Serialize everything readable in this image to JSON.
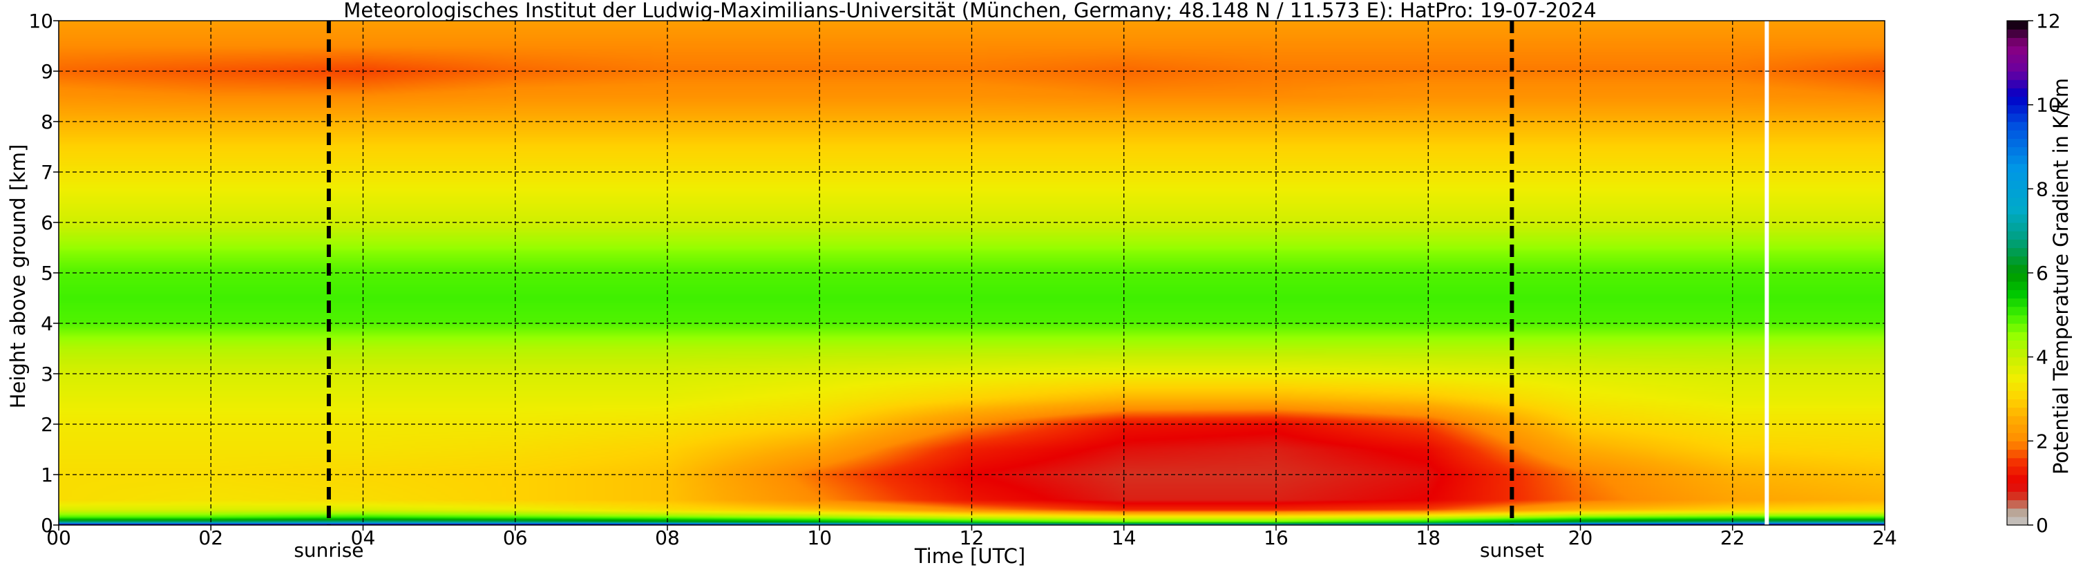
{
  "chart_data": {
    "type": "heatmap",
    "title": "Meteorologisches Institut der Ludwig-Maximilians-Universität (München, Germany; 48.148 N / 11.573 E):    HatPro: 19-07-2024",
    "xlabel": "Time [UTC]",
    "ylabel": "Height above ground [km]",
    "xlim": [
      0,
      24
    ],
    "ylim": [
      0,
      10
    ],
    "x_ticks": [
      "00",
      "02",
      "04",
      "06",
      "08",
      "10",
      "12",
      "14",
      "16",
      "18",
      "20",
      "22",
      "24"
    ],
    "y_ticks": [
      "0",
      "1",
      "2",
      "3",
      "4",
      "5",
      "6",
      "7",
      "8",
      "9",
      "10"
    ],
    "grid": true,
    "colorbar": {
      "label": "Potential Temperature Gradient in K/km",
      "range": [
        0,
        12
      ],
      "ticks": [
        "0",
        "2",
        "4",
        "6",
        "8",
        "10",
        "12"
      ]
    },
    "events": [
      {
        "label": "sunrise",
        "time": 3.55
      },
      {
        "label": "sunset",
        "time": 19.1
      }
    ],
    "data_gap_time": 22.45,
    "profile_levels": [
      0.0,
      0.05,
      0.15,
      0.3,
      0.5,
      1.0,
      1.5,
      2.0,
      2.5,
      3.0,
      3.5,
      4.0,
      4.5,
      5.0,
      5.4,
      6.0,
      6.5,
      7.0,
      7.5,
      8.0,
      8.5,
      9.0,
      9.5,
      10.0
    ],
    "times": [
      0,
      2,
      4,
      6,
      8,
      10,
      12,
      14,
      16,
      18,
      20,
      22,
      24
    ],
    "gradient_profiles": [
      [
        11.5,
        7.0,
        5.0,
        3.8,
        3.2,
        3.2,
        3.3,
        3.4,
        3.6,
        3.8,
        4.2,
        4.9,
        5.0,
        4.9,
        4.6,
        3.9,
        3.6,
        3.3,
        3.0,
        2.6,
        2.1,
        1.8,
        2.0,
        2.3
      ],
      [
        11.5,
        7.0,
        5.0,
        3.8,
        3.3,
        3.2,
        3.3,
        3.4,
        3.6,
        3.8,
        4.2,
        4.9,
        5.0,
        4.9,
        4.6,
        3.9,
        3.6,
        3.3,
        3.0,
        2.6,
        2.0,
        1.7,
        2.0,
        2.3
      ],
      [
        11.5,
        7.2,
        5.2,
        3.8,
        3.2,
        3.1,
        3.3,
        3.4,
        3.6,
        3.8,
        4.2,
        4.9,
        5.0,
        4.9,
        4.6,
        3.9,
        3.6,
        3.3,
        3.0,
        2.6,
        2.0,
        1.6,
        2.0,
        2.3
      ],
      [
        11.5,
        7.0,
        5.0,
        3.6,
        3.0,
        3.0,
        3.2,
        3.4,
        3.6,
        3.8,
        4.2,
        4.9,
        5.0,
        4.9,
        4.6,
        3.9,
        3.6,
        3.3,
        3.0,
        2.6,
        2.1,
        1.8,
        2.0,
        2.3
      ],
      [
        11.0,
        6.5,
        4.8,
        3.2,
        2.8,
        2.8,
        3.0,
        3.3,
        3.6,
        3.8,
        4.2,
        4.9,
        5.0,
        4.9,
        4.6,
        3.9,
        3.6,
        3.3,
        3.0,
        2.6,
        2.1,
        1.9,
        2.0,
        2.3
      ],
      [
        10.0,
        6.0,
        4.5,
        2.8,
        2.0,
        1.8,
        2.4,
        3.0,
        3.4,
        3.7,
        4.2,
        4.9,
        5.0,
        4.9,
        4.6,
        3.9,
        3.6,
        3.3,
        3.0,
        2.6,
        2.1,
        1.9,
        2.0,
        2.3
      ],
      [
        9.0,
        5.5,
        4.0,
        2.0,
        1.2,
        1.0,
        1.3,
        2.0,
        3.0,
        3.6,
        4.2,
        4.9,
        5.0,
        4.9,
        4.6,
        3.9,
        3.6,
        3.3,
        3.0,
        2.6,
        2.1,
        1.9,
        2.0,
        2.3
      ],
      [
        8.5,
        5.0,
        3.6,
        1.4,
        0.8,
        0.7,
        0.9,
        1.2,
        2.6,
        3.5,
        4.2,
        4.9,
        5.0,
        4.9,
        4.6,
        3.9,
        3.6,
        3.3,
        3.0,
        2.6,
        2.0,
        1.8,
        2.0,
        2.3
      ],
      [
        8.5,
        5.0,
        3.6,
        1.4,
        0.8,
        0.7,
        0.8,
        1.1,
        2.6,
        3.5,
        4.2,
        4.9,
        5.0,
        4.9,
        4.6,
        3.9,
        3.6,
        3.3,
        3.0,
        2.6,
        2.0,
        1.9,
        2.0,
        2.3
      ],
      [
        9.5,
        5.5,
        4.0,
        1.6,
        1.0,
        0.9,
        1.1,
        1.6,
        2.8,
        3.6,
        4.2,
        4.9,
        5.0,
        4.9,
        4.6,
        3.9,
        3.6,
        3.3,
        3.0,
        2.6,
        2.1,
        1.9,
        2.0,
        2.3
      ],
      [
        11.0,
        6.5,
        4.8,
        2.6,
        1.8,
        1.9,
        2.5,
        3.0,
        3.4,
        3.7,
        4.2,
        4.9,
        5.0,
        4.9,
        4.6,
        3.9,
        3.6,
        3.3,
        3.0,
        2.6,
        2.1,
        1.9,
        2.0,
        2.3
      ],
      [
        11.5,
        7.0,
        5.0,
        3.0,
        2.4,
        2.6,
        3.0,
        3.3,
        3.6,
        3.8,
        4.2,
        4.9,
        5.0,
        4.9,
        4.6,
        3.9,
        3.6,
        3.3,
        3.0,
        2.6,
        2.1,
        1.9,
        2.0,
        2.3
      ],
      [
        11.5,
        7.0,
        5.0,
        3.2,
        2.6,
        2.8,
        3.1,
        3.3,
        3.6,
        3.8,
        4.2,
        4.9,
        5.0,
        4.9,
        4.6,
        3.9,
        3.6,
        3.3,
        3.0,
        2.6,
        2.0,
        1.7,
        2.0,
        2.3
      ]
    ],
    "colormap": [
      {
        "v": 0.0,
        "color": "#c8c8c8"
      },
      {
        "v": 0.35,
        "color": "#b8a090"
      },
      {
        "v": 0.6,
        "color": "#d0402a"
      },
      {
        "v": 1.0,
        "color": "#e80000"
      },
      {
        "v": 1.5,
        "color": "#f43200"
      },
      {
        "v": 2.0,
        "color": "#ff8c00"
      },
      {
        "v": 2.5,
        "color": "#ffaa00"
      },
      {
        "v": 3.0,
        "color": "#ffd200"
      },
      {
        "v": 3.5,
        "color": "#f0ee00"
      },
      {
        "v": 4.0,
        "color": "#c8f000"
      },
      {
        "v": 4.5,
        "color": "#96ff00"
      },
      {
        "v": 5.0,
        "color": "#40f000"
      },
      {
        "v": 5.5,
        "color": "#00c800"
      },
      {
        "v": 6.0,
        "color": "#009900"
      },
      {
        "v": 6.8,
        "color": "#00a080"
      },
      {
        "v": 7.5,
        "color": "#00aac8"
      },
      {
        "v": 8.5,
        "color": "#0096e6"
      },
      {
        "v": 9.5,
        "color": "#0050e0"
      },
      {
        "v": 10.2,
        "color": "#0000c8"
      },
      {
        "v": 10.8,
        "color": "#6a00a0"
      },
      {
        "v": 11.4,
        "color": "#8a0080"
      },
      {
        "v": 12.0,
        "color": "#000000"
      }
    ]
  }
}
